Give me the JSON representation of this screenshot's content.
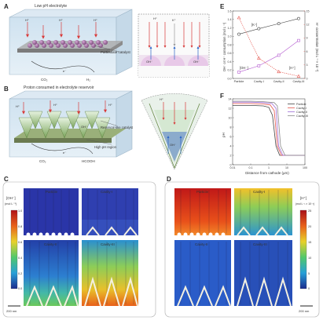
{
  "panels": {
    "A": {
      "letter": "A",
      "title": "Low pH electrolyte",
      "catalyst_label": "Particulate catalyst",
      "co2": "CO₂",
      "h2": "H₂",
      "e": "e⁻",
      "hplus": "H⁺",
      "oh": "OH⁻",
      "zoom_h": "H⁺",
      "zoom_oh": "OH⁻",
      "zoom_k": "K⁺"
    },
    "B": {
      "letter": "B",
      "title": "Proton consumed in electrolyte reservoir",
      "reservoir_label": "Reservoir-like catalyst",
      "high_ph_label": "High pH region",
      "co2": "CO₂",
      "hcooh": "HCOOH",
      "e": "e⁻",
      "hplus": "H⁺",
      "oh": "OH⁻"
    },
    "C": {
      "letter": "C",
      "subpanels": [
        "Particle",
        "Cavity-I",
        "Cavity-II",
        "Cavity-III"
      ],
      "colorbar_title": "[OH⁻]",
      "colorbar_unit": "(mol L⁻¹)",
      "colorbar_ticks": [
        "1.0",
        "0.8",
        "0.6",
        "0.4",
        "0.2",
        "0.0"
      ],
      "scalebar": "200 nm"
    },
    "D": {
      "letter": "D",
      "subpanels": [
        "Particle",
        "Cavity-I",
        "Cavity-II",
        "Cavity-III"
      ],
      "colorbar_title": "[H⁺]",
      "colorbar_unit": "(mol L⁻¹ × 10⁻³)",
      "colorbar_ticks": [
        "25",
        "20",
        "15",
        "10",
        "5",
        "0"
      ],
      "scalebar": "200 nm"
    },
    "E": {
      "letter": "E",
      "ylabel_left": "OH⁻ or H⁺ consumption (mol L⁻¹)",
      "ylabel_right": "H⁺ concentration (mol L⁻¹ × 10⁻³)",
      "legend_k": "[K⁺]",
      "legend_oh": "[OH⁻]",
      "legend_h": "[H⁺]"
    },
    "F": {
      "letter": "F",
      "xlabel": "Distance from cathode (μm)",
      "ylabel": "pH",
      "legend": [
        "Particle",
        "Cavity-I",
        "Cavity-II",
        "Cavity-III"
      ]
    }
  },
  "chart_data": [
    {
      "type": "line",
      "categories": [
        "Particle",
        "Cavity-I",
        "Cavity-II",
        "Cavity-III"
      ],
      "ylim_left": [
        0.0,
        1.6
      ],
      "ylim_right": [
        0,
        15
      ],
      "yticks_left": [
        "0.0",
        "0.2",
        "0.4",
        "0.6",
        "0.8",
        "1.0",
        "1.2",
        "1.4",
        "1.6"
      ],
      "yticks_right": [
        "0",
        "3",
        "6",
        "9",
        "12",
        "15"
      ],
      "series": [
        {
          "name": "[K⁺]",
          "axis": "left",
          "color": "#444444",
          "marker": "circle",
          "values": [
            1.05,
            1.18,
            1.3,
            1.42
          ]
        },
        {
          "name": "[OH⁻]",
          "axis": "left",
          "color": "#b45bd0",
          "marker": "square",
          "values": [
            0.15,
            0.3,
            0.55,
            0.9
          ]
        },
        {
          "name": "[H⁺]",
          "axis": "right",
          "color": "#e5534b",
          "marker": "triangle",
          "values": [
            13.5,
            4.5,
            1.5,
            0.5
          ]
        }
      ]
    },
    {
      "type": "line",
      "xscale": "log",
      "xlim": [
        0.01,
        100
      ],
      "xticks": [
        "0.01",
        "0.1",
        "1",
        "10",
        "100"
      ],
      "ylim": [
        0,
        14
      ],
      "yticks": [
        "0",
        "2",
        "4",
        "6",
        "8",
        "10",
        "12",
        "14"
      ],
      "series": [
        {
          "name": "Particle",
          "color": "#444444",
          "x": [
            0.01,
            0.1,
            0.5,
            1.0,
            1.6,
            2.5,
            4,
            10,
            100
          ],
          "y": [
            12.6,
            12.6,
            12.5,
            12.2,
            10.5,
            4.0,
            2.0,
            2.0,
            2.0
          ]
        },
        {
          "name": "Cavity-I",
          "color": "#e5534b",
          "x": [
            0.01,
            0.1,
            0.5,
            1.2,
            2.0,
            3.0,
            5,
            10,
            100
          ],
          "y": [
            13.0,
            13.0,
            12.9,
            12.7,
            11.5,
            4.0,
            2.0,
            2.0,
            2.0
          ]
        },
        {
          "name": "Cavity-II",
          "color": "#9c6ad6",
          "x": [
            0.01,
            0.1,
            0.5,
            1.5,
            2.5,
            3.5,
            6,
            10,
            100
          ],
          "y": [
            13.3,
            13.3,
            13.2,
            13.0,
            12.0,
            4.0,
            2.0,
            2.0,
            2.0
          ]
        },
        {
          "name": "Cavity-III",
          "color": "#8a8a8a",
          "x": [
            0.01,
            0.1,
            0.5,
            2.0,
            3.0,
            4.5,
            8,
            12,
            100
          ],
          "y": [
            13.5,
            13.5,
            13.4,
            13.2,
            12.5,
            4.0,
            2.0,
            2.0,
            2.0
          ]
        }
      ]
    }
  ]
}
